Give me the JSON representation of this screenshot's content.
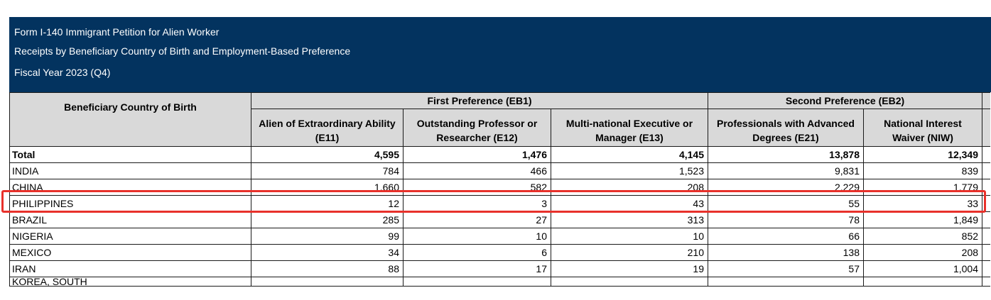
{
  "banner": {
    "title": "Form I-140 Immigrant Petition for Alien Worker",
    "subtitle": "Receipts by Beneficiary Country of Birth and Employment-Based Preference",
    "period": "Fiscal Year 2023 (Q4)"
  },
  "table": {
    "row_header": "Beneficiary Country of Birth",
    "groups": {
      "eb1": "First Preference (EB1)",
      "eb2": "Second Preference (EB2)"
    },
    "columns": [
      "Alien of Extraordinary Ability (E11)",
      "Outstanding Professor or Researcher (E12)",
      "Multi-national Executive or Manager (E13)",
      "Professionals with Advanced Degrees (E21)",
      "National Interest Waiver (NIW)"
    ],
    "total": {
      "label": "Total",
      "values": [
        "4,595",
        "1,476",
        "4,145",
        "13,878",
        "12,349"
      ]
    },
    "rows": [
      {
        "label": "INDIA",
        "values": [
          "784",
          "466",
          "1,523",
          "9,831",
          "839"
        ]
      },
      {
        "label": "CHINA",
        "values": [
          "1,660",
          "582",
          "208",
          "2,229",
          "1,779"
        ]
      },
      {
        "label": "PHILIPPINES",
        "values": [
          "12",
          "3",
          "43",
          "55",
          "33"
        ]
      },
      {
        "label": "BRAZIL",
        "values": [
          "285",
          "27",
          "313",
          "78",
          "1,849"
        ]
      },
      {
        "label": "NIGERIA",
        "values": [
          "99",
          "10",
          "10",
          "66",
          "852"
        ]
      },
      {
        "label": "MEXICO",
        "values": [
          "34",
          "6",
          "210",
          "138",
          "208"
        ]
      },
      {
        "label": "IRAN",
        "values": [
          "88",
          "17",
          "19",
          "57",
          "1,004"
        ]
      }
    ],
    "cut_row": {
      "label": "KOREA, SOUTH"
    }
  },
  "highlight_color": "#e8312b",
  "banner_color": "#03335f",
  "header_color": "#d9d9d9"
}
